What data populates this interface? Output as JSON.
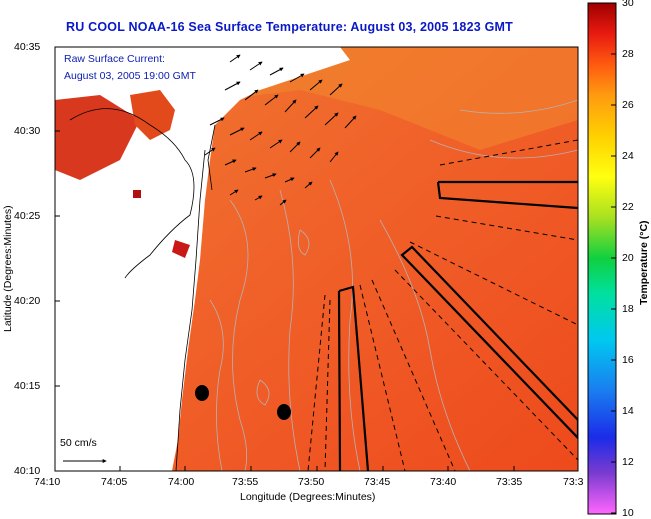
{
  "title": "RU COOL  NOAA-16  Sea Surface Temperature:  August 03, 2005 1823 GMT",
  "annotation": {
    "line1": "Raw Surface Current:",
    "line2": "August 03, 2005 19:00 GMT"
  },
  "scale_label": "50 cm/s",
  "axes": {
    "xlabel": "Longitude (Degrees:Minutes)",
    "ylabel": "Latitude (Degrees:Minutes)",
    "xticks": [
      "74:10",
      "74:05",
      "74:00",
      "73:55",
      "73:50",
      "73:45",
      "73:40",
      "73:35",
      "73:3"
    ],
    "yticks": [
      "40:35",
      "40:30",
      "40:25",
      "40:20",
      "40:15",
      "40:10"
    ]
  },
  "colorbar": {
    "label": "Temperature (°C)",
    "min": 10,
    "max": 30,
    "ticks": [
      "30",
      "28",
      "26",
      "24",
      "22",
      "20",
      "18",
      "16",
      "14",
      "12",
      "10"
    ],
    "colors": [
      "#ff66ff",
      "#7a3bd0",
      "#1b2ce8",
      "#1a7cf0",
      "#00c8f0",
      "#00e0a0",
      "#10d040",
      "#a8e020",
      "#ffff10",
      "#ffd000",
      "#ff9a10",
      "#ff5a10",
      "#e81a10",
      "#a00000"
    ]
  },
  "colors": {
    "title": "#0a18c8",
    "ocean_warm": "#f05a18",
    "ocean_cool": "#f08a28",
    "land": "#ffffff",
    "track": "#000000"
  }
}
